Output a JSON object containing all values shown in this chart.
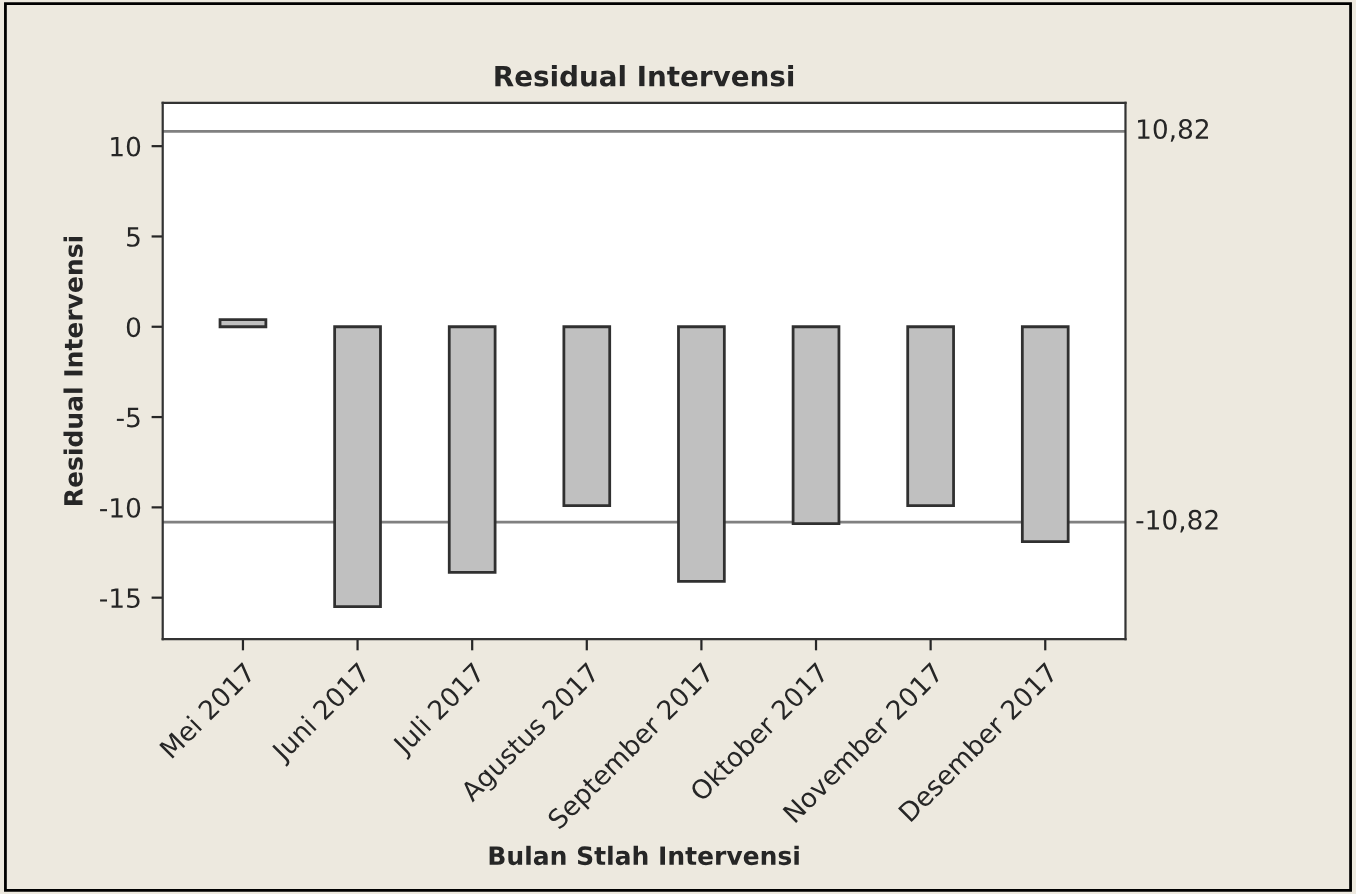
{
  "chart_data": {
    "type": "bar",
    "title": "Residual Intervensi",
    "xlabel": "Bulan Stlah Intervensi",
    "ylabel": "Residual Intervensi",
    "categories": [
      "Mei 2017",
      "Juni 2017",
      "Juli 2017",
      "Agustus 2017",
      "September 2017",
      "Oktober 2017",
      "November 2017",
      "Desember 2017"
    ],
    "values": [
      0.4,
      -15.5,
      -13.6,
      -9.9,
      -14.1,
      -10.9,
      -9.9,
      -11.9
    ],
    "color": "#c0c0c0",
    "ylim": [
      -17.3,
      12.4
    ],
    "yticks": [
      -15,
      -10,
      -5,
      0,
      5,
      10
    ],
    "ref_lines": [
      {
        "axis": "y",
        "value": 10.82,
        "label": "10,82",
        "color": "#808080"
      },
      {
        "axis": "y",
        "value": -10.82,
        "label": "-10,82",
        "color": "#808080"
      }
    ],
    "grid": false,
    "legend": false
  }
}
